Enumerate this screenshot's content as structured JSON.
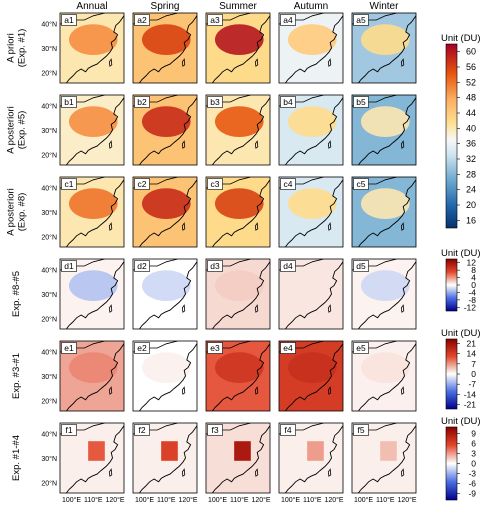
{
  "figure": {
    "columns": [
      "Annual",
      "Spring",
      "Summer",
      "Autumn",
      "Winter"
    ],
    "lat_ticks": [
      "40°N",
      "30°N",
      "20°N"
    ],
    "lon_ticks": [
      "100°E",
      "110°E",
      "120°E"
    ]
  },
  "chart_data": {
    "type": "heatmap",
    "map_extent": {
      "lon": [
        95,
        127
      ],
      "lat": [
        17,
        45
      ]
    },
    "rows": [
      {
        "label": [
          "A priori",
          "(Exp. #1)"
        ],
        "panels": [
          "a1",
          "a2",
          "a3",
          "a4",
          "a5"
        ],
        "colorbar": 0,
        "domain_mean": [
          40,
          45,
          42,
          36,
          30
        ],
        "core_max": [
          50,
          56,
          60,
          44,
          42
        ]
      },
      {
        "label": [
          "A posteriori",
          "(Exp. #5)"
        ],
        "panels": [
          "b1",
          "b2",
          "b3",
          "b4",
          "b5"
        ],
        "colorbar": 0,
        "domain_mean": [
          39,
          45,
          40,
          34,
          28
        ],
        "core_max": [
          50,
          58,
          54,
          42,
          40
        ]
      },
      {
        "label": [
          "A posteriori",
          "(Exp. #8)"
        ],
        "panels": [
          "c1",
          "c2",
          "c3",
          "c4",
          "c5"
        ],
        "colorbar": 0,
        "domain_mean": [
          40,
          45,
          42,
          34,
          28
        ],
        "core_max": [
          52,
          58,
          56,
          42,
          40
        ]
      },
      {
        "label": [
          "Exp. #8-#5"
        ],
        "panels": [
          "d1",
          "d2",
          "d3",
          "d4",
          "d5"
        ],
        "colorbar": 1,
        "domain_mean": [
          0.5,
          0,
          1.5,
          1,
          0.5
        ],
        "core_max": [
          -3,
          -2,
          2,
          1,
          -2
        ]
      },
      {
        "label": [
          "Exp. #3-#1"
        ],
        "panels": [
          "e1",
          "e2",
          "e3",
          "e4",
          "e5"
        ],
        "colorbar": 2,
        "domain_mean": [
          6,
          0,
          11,
          14,
          1
        ],
        "core_max": [
          8,
          1,
          15,
          16,
          2
        ]
      },
      {
        "label": [
          "Exp. #1-#4"
        ],
        "panels": [
          "f1",
          "f2",
          "f3",
          "f4",
          "f5"
        ],
        "colorbar": 3,
        "domain_mean": [
          0.5,
          0.5,
          1,
          0.5,
          0.5
        ],
        "core_max": [
          5,
          6,
          9,
          3,
          2
        ]
      }
    ],
    "colorbars": [
      {
        "title": "Unit (DU)",
        "range": [
          14,
          62
        ],
        "ticks": [
          60,
          56,
          52,
          48,
          44,
          40,
          36,
          32,
          28,
          24,
          20,
          16
        ]
      },
      {
        "title": "Unit (DU)",
        "range": [
          -14,
          14
        ],
        "ticks": [
          12,
          8,
          4,
          0,
          -4,
          -8,
          -12
        ]
      },
      {
        "title": "Unit (DU)",
        "range": [
          -24,
          24
        ],
        "ticks": [
          21,
          14,
          7,
          0,
          -7,
          -14,
          -21
        ]
      },
      {
        "title": "Unit (DU)",
        "range": [
          -11,
          11
        ],
        "ticks": [
          9,
          6,
          3,
          0,
          -3,
          -6,
          -9
        ]
      }
    ]
  }
}
